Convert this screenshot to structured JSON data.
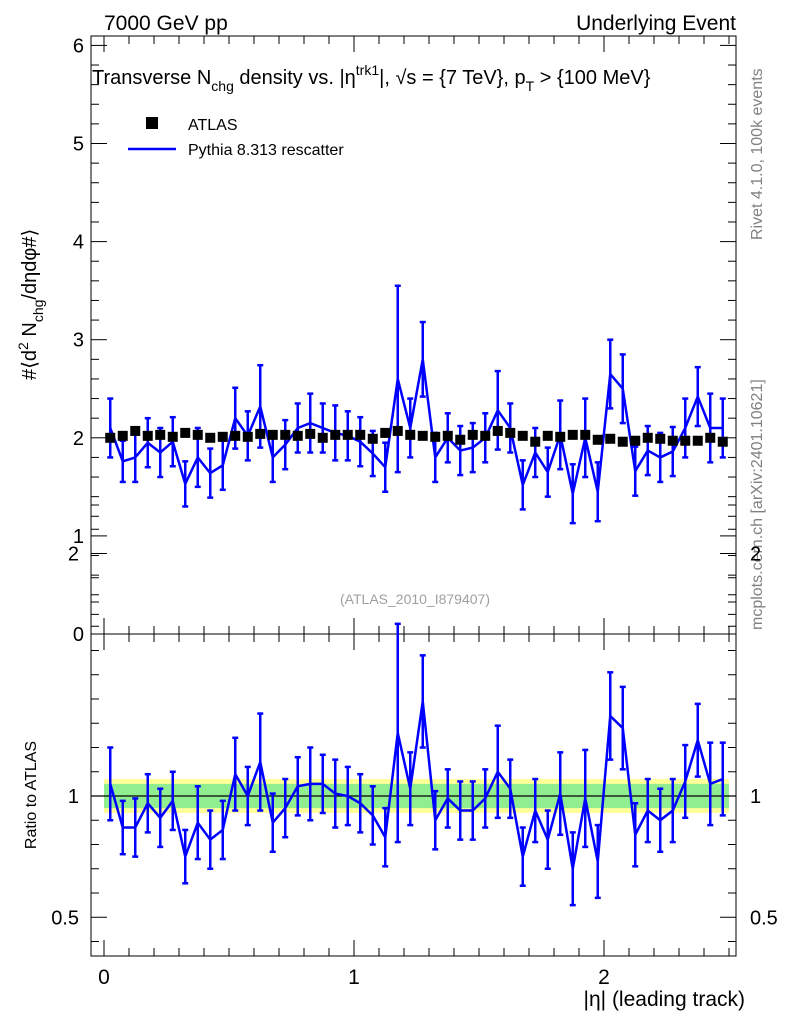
{
  "header": {
    "left": "7000 GeV pp",
    "right": "Underlying Event"
  },
  "side_labels": {
    "rivet": "Rivet 4.1.0,  100k events",
    "mcplots": "mcplots.cern.ch [arXiv:2401.10621]"
  },
  "plot_title": {
    "prefix": "Transverse N",
    "sub1": "chg",
    "mid": " density vs. |η",
    "sup1": "trk1",
    "rest": "|, √s = {7 TeV}, p",
    "sub2": "T",
    "tail": " > {100 MeV}"
  },
  "legend": {
    "data_label": "ATLAS",
    "mc_label": "Pythia 8.313 rescatter"
  },
  "watermark": "(ATLAS_2010_I879407)",
  "ratio_ylabel": "Ratio to ATLAS",
  "colors": {
    "mc": "#0000ff",
    "data": "#000000",
    "band_inner": "#90ee90",
    "band_outer": "#ffff99"
  },
  "chart_data": {
    "type": "line",
    "x": [
      0.025,
      0.075,
      0.125,
      0.175,
      0.225,
      0.275,
      0.325,
      0.375,
      0.425,
      0.475,
      0.525,
      0.575,
      0.625,
      0.675,
      0.725,
      0.775,
      0.825,
      0.875,
      0.925,
      0.975,
      1.025,
      1.075,
      1.125,
      1.175,
      1.225,
      1.275,
      1.325,
      1.375,
      1.425,
      1.475,
      1.525,
      1.575,
      1.625,
      1.675,
      1.725,
      1.775,
      1.825,
      1.875,
      1.925,
      1.975,
      2.025,
      2.075,
      2.125,
      2.175,
      2.225,
      2.275,
      2.325,
      2.375,
      2.425,
      2.475
    ],
    "xlabel": "|η| (leading track)",
    "xlim": [
      -0.05,
      2.58
    ],
    "xticks": [
      0,
      1,
      2
    ],
    "main": {
      "ylabel_parts": [
        "#⟨d",
        "2",
        " N",
        "chg",
        "/dηdφ#⟩"
      ],
      "ylim": [
        0,
        6.1
      ],
      "yticks": [
        0,
        1,
        2,
        3,
        4,
        5,
        6
      ],
      "series": [
        {
          "name": "ATLAS",
          "values": [
            2.0,
            2.02,
            2.07,
            2.02,
            2.03,
            2.01,
            2.05,
            2.03,
            2.0,
            2.01,
            2.02,
            2.01,
            2.04,
            2.03,
            2.03,
            2.02,
            2.04,
            2.0,
            2.03,
            2.03,
            2.03,
            1.99,
            2.05,
            2.07,
            2.03,
            2.02,
            2.01,
            2.02,
            1.98,
            2.03,
            2.02,
            2.07,
            2.05,
            2.02,
            1.96,
            2.02,
            2.01,
            2.03,
            2.03,
            1.98,
            1.99,
            1.96,
            1.97,
            2.0,
            1.99,
            1.97,
            1.97,
            1.97,
            2.0,
            1.96
          ]
        },
        {
          "name": "Pythia 8.313 rescatter",
          "values": [
            2.1,
            1.76,
            1.8,
            1.95,
            1.85,
            1.96,
            1.53,
            1.8,
            1.64,
            1.72,
            2.2,
            2.02,
            2.32,
            1.8,
            1.93,
            2.1,
            2.15,
            2.1,
            2.05,
            2.02,
            1.96,
            1.84,
            1.7,
            2.6,
            2.1,
            2.8,
            1.8,
            2.0,
            1.87,
            1.9,
            2.0,
            2.28,
            2.1,
            1.52,
            1.85,
            1.65,
            2.03,
            1.43,
            2.0,
            1.45,
            2.65,
            2.5,
            1.66,
            1.87,
            1.8,
            1.86,
            2.1,
            2.42,
            2.1,
            2.1
          ],
          "errors": [
            0.3,
            0.21,
            0.25,
            0.25,
            0.25,
            0.25,
            0.23,
            0.3,
            0.25,
            0.25,
            0.31,
            0.25,
            0.42,
            0.25,
            0.25,
            0.25,
            0.3,
            0.25,
            0.28,
            0.25,
            0.25,
            0.23,
            0.25,
            0.95,
            0.3,
            0.38,
            0.25,
            0.25,
            0.25,
            0.25,
            0.25,
            0.4,
            0.25,
            0.25,
            0.25,
            0.25,
            0.35,
            0.3,
            0.4,
            0.3,
            0.35,
            0.35,
            0.25,
            0.25,
            0.25,
            0.25,
            0.3,
            0.3,
            0.35,
            0.3
          ]
        }
      ]
    },
    "ratio": {
      "ylabel": "Ratio to ATLAS",
      "ylim": [
        0.36,
        2.32
      ],
      "yticks": [
        0.5,
        1,
        2
      ],
      "band_inner": 0.05,
      "band_outer": 0.07,
      "values": [
        1.05,
        0.87,
        0.87,
        0.97,
        0.91,
        0.98,
        0.75,
        0.89,
        0.82,
        0.86,
        1.09,
        1.0,
        1.14,
        0.89,
        0.95,
        1.04,
        1.05,
        1.05,
        1.01,
        1.0,
        0.97,
        0.92,
        0.83,
        1.26,
        1.03,
        1.39,
        0.9,
        0.99,
        0.94,
        0.94,
        0.99,
        1.1,
        1.03,
        0.75,
        0.94,
        0.82,
        1.01,
        0.7,
        0.99,
        0.73,
        1.33,
        1.28,
        0.84,
        0.94,
        0.9,
        0.94,
        1.06,
        1.23,
        1.05,
        1.07
      ],
      "errors": [
        0.15,
        0.11,
        0.12,
        0.12,
        0.12,
        0.12,
        0.11,
        0.15,
        0.12,
        0.12,
        0.15,
        0.12,
        0.2,
        0.12,
        0.12,
        0.12,
        0.15,
        0.12,
        0.14,
        0.12,
        0.12,
        0.12,
        0.12,
        0.45,
        0.15,
        0.19,
        0.12,
        0.12,
        0.12,
        0.12,
        0.12,
        0.19,
        0.12,
        0.12,
        0.13,
        0.12,
        0.17,
        0.15,
        0.2,
        0.15,
        0.18,
        0.17,
        0.13,
        0.13,
        0.13,
        0.13,
        0.15,
        0.15,
        0.17,
        0.15
      ]
    }
  }
}
